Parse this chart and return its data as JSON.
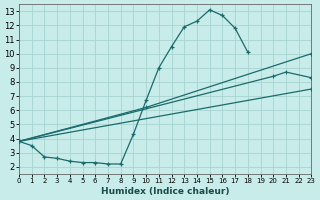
{
  "xlabel": "Humidex (Indice chaleur)",
  "bg_color": "#c8ecea",
  "grid_color": "#a8d4d0",
  "line_color": "#1a6b6b",
  "xlim": [
    0,
    23
  ],
  "ylim": [
    1.5,
    13.5
  ],
  "xticks": [
    0,
    1,
    2,
    3,
    4,
    5,
    6,
    7,
    8,
    9,
    10,
    11,
    12,
    13,
    14,
    15,
    16,
    17,
    18,
    19,
    20,
    21,
    22,
    23
  ],
  "yticks": [
    2,
    3,
    4,
    5,
    6,
    7,
    8,
    9,
    10,
    11,
    12,
    13
  ],
  "curve_x": [
    0,
    1,
    2,
    3,
    4,
    5,
    6,
    7,
    8,
    9,
    10,
    11,
    12,
    13,
    14,
    15,
    16,
    17,
    18
  ],
  "curve_y": [
    3.8,
    3.5,
    2.7,
    2.6,
    2.4,
    2.3,
    2.3,
    2.2,
    2.2,
    4.3,
    6.7,
    9.0,
    10.5,
    11.9,
    12.3,
    13.1,
    12.7,
    11.8,
    10.1
  ],
  "line2_x": [
    0,
    10,
    23
  ],
  "line2_y": [
    3.8,
    6.2,
    10.0
  ],
  "line3_x": [
    0,
    20,
    21,
    23
  ],
  "line3_y": [
    3.8,
    8.4,
    8.7,
    8.3
  ],
  "line4_x": [
    0,
    23
  ],
  "line4_y": [
    3.8,
    7.5
  ]
}
